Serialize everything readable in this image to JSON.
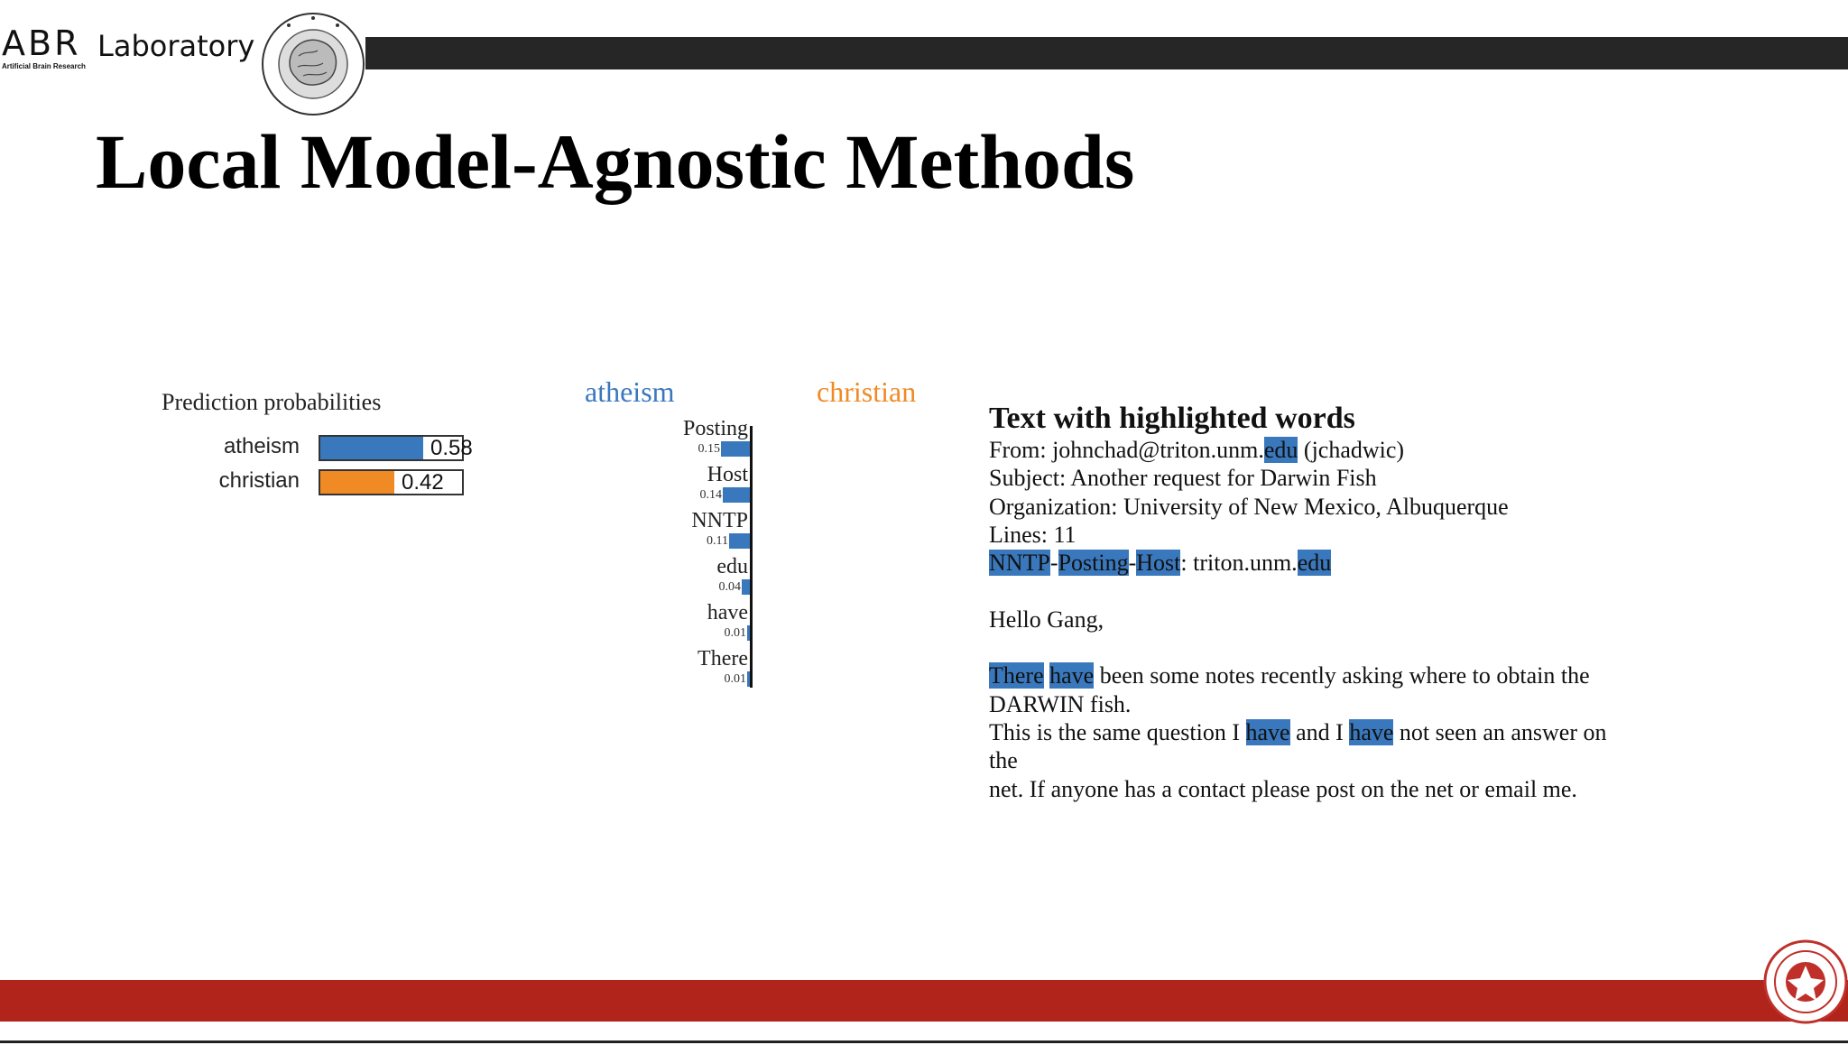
{
  "header": {
    "logo_abr": "ABR",
    "logo_lab": "Laboratory",
    "logo_sub": "Artificial Brain Research",
    "seal_icon": "abr-brain-seal-icon"
  },
  "slide": {
    "title": "Local Model-Agnostic Methods"
  },
  "prediction": {
    "title": "Prediction probabilities",
    "rows": [
      {
        "label": "atheism",
        "value": 0.58,
        "value_text": "0.58",
        "color": "#3a78bd"
      },
      {
        "label": "christian",
        "value": 0.42,
        "value_text": "0.42",
        "color": "#f08a24"
      }
    ]
  },
  "chart_data": {
    "type": "bar",
    "class_left": "atheism",
    "class_right": "christian",
    "class_left_color": "#3a78bd",
    "class_right_color": "#f08a24",
    "categories": [
      "Posting",
      "Host",
      "NNTP",
      "edu",
      "have",
      "There"
    ],
    "values": [
      0.15,
      0.14,
      0.11,
      0.04,
      0.01,
      0.01
    ],
    "value_labels": [
      "0.15",
      "0.14",
      "0.11",
      "0.04",
      "0.01",
      "0.01"
    ],
    "orientation": "horizontal"
  },
  "text_panel": {
    "title": "Text with highlighted words",
    "lines": [
      [
        {
          "t": "From: johnchad@triton.unm."
        },
        {
          "t": "edu",
          "h": true
        },
        {
          "t": " (jchadwic)"
        }
      ],
      [
        {
          "t": "Subject: Another request for Darwin Fish"
        }
      ],
      [
        {
          "t": "Organization: University of New Mexico, Albuquerque"
        }
      ],
      [
        {
          "t": "Lines: 11"
        }
      ],
      [
        {
          "t": "NNTP",
          "h": true
        },
        {
          "t": "-"
        },
        {
          "t": "Posting",
          "h": true
        },
        {
          "t": "-"
        },
        {
          "t": "Host",
          "h": true
        },
        {
          "t": ": triton.unm."
        },
        {
          "t": "edu",
          "h": true
        }
      ],
      [],
      [
        {
          "t": "Hello Gang,"
        }
      ],
      [],
      [
        {
          "t": "There",
          "h": true
        },
        {
          "t": " "
        },
        {
          "t": "have",
          "h": true
        },
        {
          "t": " been some notes recently asking where to obtain the"
        }
      ],
      [
        {
          "t": "DARWIN fish."
        }
      ],
      [
        {
          "t": "This is the same question I "
        },
        {
          "t": "have",
          "h": true
        },
        {
          "t": " and I "
        },
        {
          "t": "have",
          "h": true
        },
        {
          "t": " not seen an answer on"
        }
      ],
      [
        {
          "t": "the"
        }
      ],
      [
        {
          "t": "net. If anyone has a contact please post on the net or email me."
        }
      ]
    ]
  },
  "footer": {
    "seal_icon": "knu-university-seal-icon",
    "accent": "#b0241b"
  }
}
